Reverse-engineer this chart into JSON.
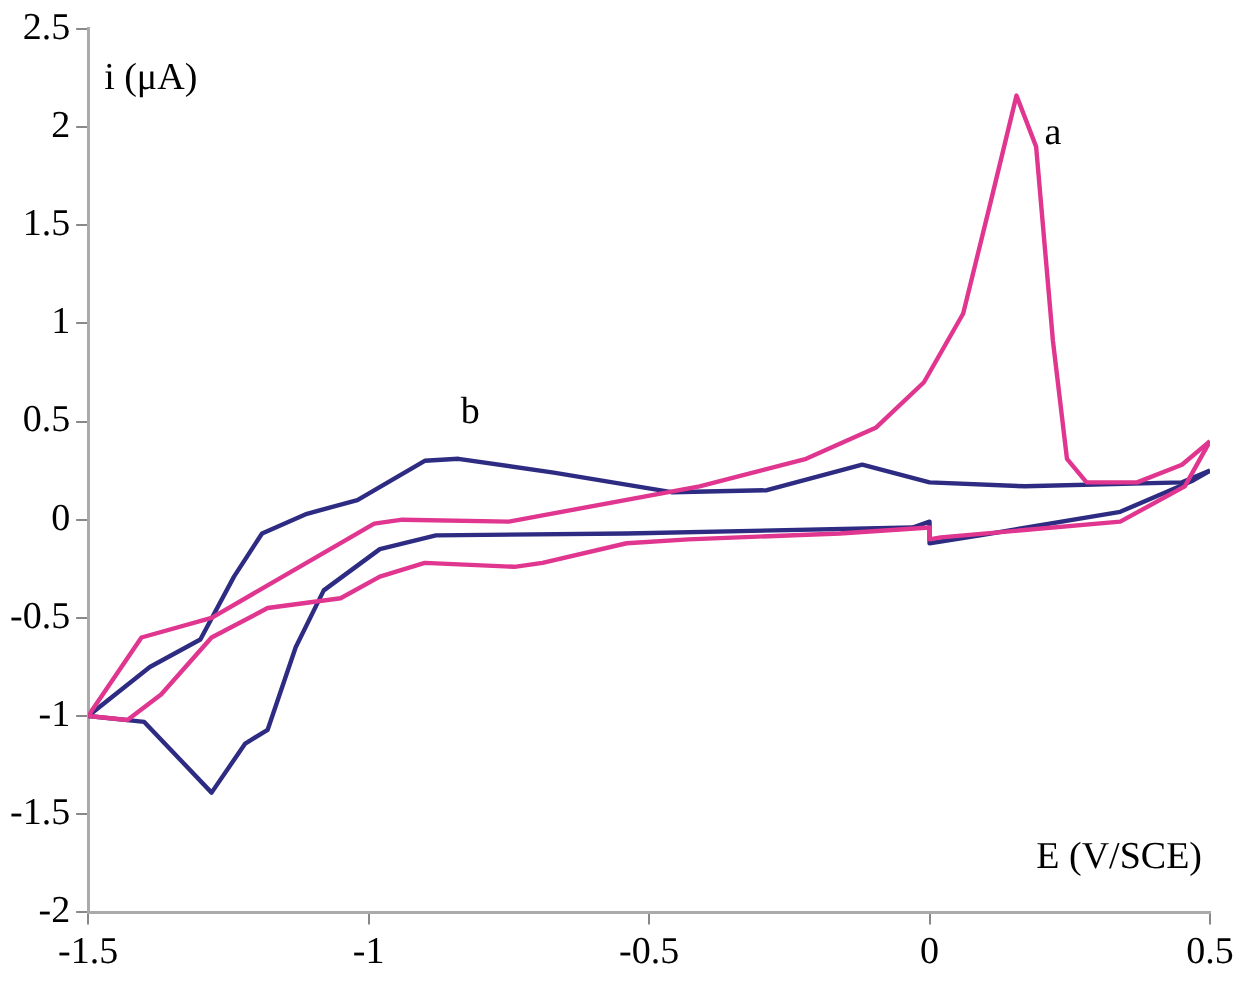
{
  "chart_data": {
    "type": "line",
    "xlabel": "E (V/SCE)",
    "ylabel": "i (μA)",
    "xlim": [
      -1.5,
      0.5
    ],
    "xticks": [
      -1.5,
      -1,
      -0.5,
      0,
      0.5
    ],
    "ylim": [
      -2,
      2.5
    ],
    "yticks": [
      -2,
      -1.5,
      -1,
      -0.5,
      0,
      0.5,
      1,
      1.5,
      2,
      2.5
    ],
    "grid": false,
    "legend": false,
    "marker": "none",
    "line_style": "solid",
    "series": [
      {
        "color": "#e0368f",
        "x": [
          -1.5,
          -1.43,
          -1.37,
          -1.28,
          -1.18,
          -1.05,
          -0.98,
          -0.9,
          -0.74,
          -0.69,
          -0.54,
          -0.43,
          -0.16,
          0,
          0,
          0.02,
          0.34,
          0.455,
          0.5
        ],
        "values": [
          -1,
          -1.02,
          -0.89,
          -0.6,
          -0.45,
          -0.4,
          -0.29,
          -0.22,
          -0.24,
          -0.22,
          -0.12,
          -0.1,
          -0.07,
          -0.04,
          -0.1,
          -0.09,
          -0.01,
          0.17,
          0.4
        ]
      },
      {
        "name": "a",
        "color": "#e0368f",
        "x": [
          -1.5,
          -1.405,
          -1.28,
          -0.99,
          -0.94,
          -0.75,
          -0.41,
          -0.22,
          -0.095,
          -0.01,
          0.06,
          0.11,
          0.155,
          0.19,
          0.22,
          0.245,
          0.28,
          0.37,
          0.45,
          0.5
        ],
        "values": [
          -1,
          -0.6,
          -0.5,
          -0.02,
          0,
          -0.01,
          0.17,
          0.31,
          0.47,
          0.7,
          1.05,
          1.63,
          2.16,
          1.9,
          0.91,
          0.31,
          0.19,
          0.19,
          0.28,
          0.4
        ]
      },
      {
        "color": "#2e2c82",
        "x": [
          -1.5,
          -1.4,
          -1.28,
          -1.22,
          -1.18,
          -1.13,
          -1.08,
          -0.98,
          -0.88,
          -0.54,
          -0.03,
          0,
          0,
          0.09,
          0.34,
          0.47,
          0.5
        ],
        "values": [
          -1,
          -1.03,
          -1.39,
          -1.14,
          -1.07,
          -0.65,
          -0.36,
          -0.15,
          -0.08,
          -0.07,
          -0.04,
          -0.01,
          -0.12,
          -0.08,
          0.04,
          0.2,
          0.25
        ]
      },
      {
        "name": "b",
        "color": "#2e2c82",
        "x": [
          -1.5,
          -1.39,
          -1.3,
          -1.24,
          -1.19,
          -1.11,
          -1.02,
          -0.9,
          -0.84,
          -0.67,
          -0.46,
          -0.29,
          -0.12,
          0,
          0.17,
          0.45,
          0.5
        ],
        "values": [
          -1,
          -0.75,
          -0.61,
          -0.29,
          -0.07,
          0.03,
          0.1,
          0.3,
          0.31,
          0.24,
          0.14,
          0.15,
          0.28,
          0.19,
          0.17,
          0.19,
          0.25
        ]
      }
    ]
  }
}
